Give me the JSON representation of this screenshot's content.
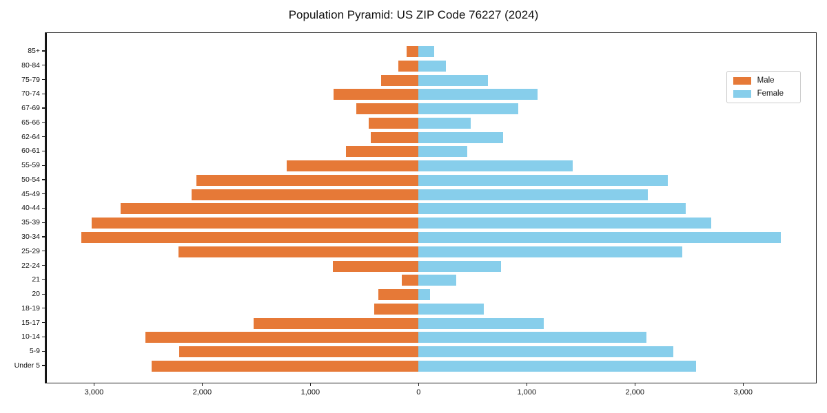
{
  "chart_data": {
    "type": "bar",
    "variant": "population-pyramid",
    "title": "Population Pyramid: US ZIP Code 76227 (2024)",
    "categories_top_to_bottom": [
      "85+",
      "80-84",
      "75-79",
      "70-74",
      "67-69",
      "65-66",
      "62-64",
      "60-61",
      "55-59",
      "50-54",
      "45-49",
      "40-44",
      "35-39",
      "30-34",
      "25-29",
      "22-24",
      "21",
      "20",
      "18-19",
      "15-17",
      "10-14",
      "5-9",
      "Under 5"
    ],
    "series": [
      {
        "name": "Male",
        "side": "left",
        "color": "#E67937",
        "values": [
          110,
          190,
          350,
          790,
          580,
          465,
          440,
          670,
          1220,
          2055,
          2105,
          2760,
          3025,
          3125,
          2225,
          795,
          155,
          370,
          410,
          1525,
          2530,
          2215,
          2470
        ]
      },
      {
        "name": "Female",
        "side": "right",
        "color": "#87CEEB",
        "values": [
          145,
          255,
          640,
          1100,
          925,
          485,
          780,
          450,
          1430,
          2310,
          2120,
          2475,
          2710,
          3355,
          2445,
          765,
          350,
          105,
          605,
          1160,
          2110,
          2360,
          2570
        ]
      }
    ],
    "x_axis": {
      "tick_values": [
        -3000,
        -2000,
        -1000,
        0,
        1000,
        2000,
        3000
      ],
      "tick_labels": [
        "3,000",
        "2,000",
        "1,000",
        "0",
        "1,000",
        "2,000",
        "3,000"
      ],
      "xlim": [
        -3455,
        3680
      ]
    },
    "y_axis": {
      "label": ""
    },
    "legend": {
      "position": "upper right",
      "entries": [
        "Male",
        "Female"
      ]
    },
    "grid": false,
    "background_color": "#ffffff",
    "axis_color": "#1f1f1f"
  }
}
